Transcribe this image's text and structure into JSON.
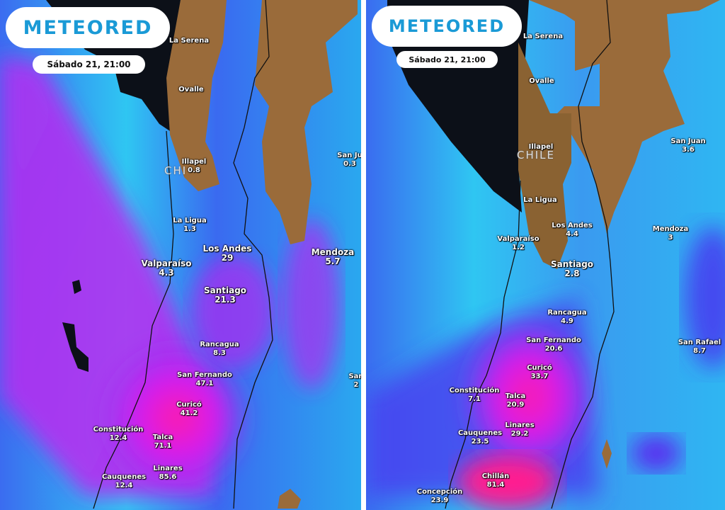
{
  "panels": [
    {
      "brand": "METEORED",
      "datetime": "Sábado 21, 21:00",
      "country_label": "CHI",
      "places": [
        {
          "name": "La Serena",
          "value": ""
        },
        {
          "name": "Ovalle",
          "value": ""
        },
        {
          "name": "Illapel",
          "value": "0.8"
        },
        {
          "name": "San Ju",
          "value": "0.3"
        },
        {
          "name": "La Ligua",
          "value": "1.3"
        },
        {
          "name": "Los Andes",
          "value": "29"
        },
        {
          "name": "Mendoza",
          "value": "5.7"
        },
        {
          "name": "Valparaíso",
          "value": "4.3"
        },
        {
          "name": "Santiago",
          "value": "21.3"
        },
        {
          "name": "Rancagua",
          "value": "8.3"
        },
        {
          "name": "San Fernando",
          "value": "47.1"
        },
        {
          "name": "San",
          "value": "2"
        },
        {
          "name": "Curicó",
          "value": "41.2"
        },
        {
          "name": "Constitución",
          "value": "12.4"
        },
        {
          "name": "Talca",
          "value": "71.1"
        },
        {
          "name": "Linares",
          "value": "85.6"
        },
        {
          "name": "Cauquenes",
          "value": "12.4"
        }
      ]
    },
    {
      "brand": "METEORED",
      "datetime": "Sábado 21, 21:00",
      "country_label": "CHILE",
      "places": [
        {
          "name": "La Serena",
          "value": ""
        },
        {
          "name": "Ovalle",
          "value": ""
        },
        {
          "name": "Illapel",
          "value": ""
        },
        {
          "name": "San Juan",
          "value": "3.6"
        },
        {
          "name": "La Ligua",
          "value": ""
        },
        {
          "name": "Los Andes",
          "value": "4.4"
        },
        {
          "name": "Mendoza",
          "value": "3"
        },
        {
          "name": "Valparaíso",
          "value": "1.2"
        },
        {
          "name": "Santiago",
          "value": "2.8"
        },
        {
          "name": "Rancagua",
          "value": "4.9"
        },
        {
          "name": "San Fernando",
          "value": "20.6"
        },
        {
          "name": "San Rafael",
          "value": "8.7"
        },
        {
          "name": "Curicó",
          "value": "33.7"
        },
        {
          "name": "Constitución",
          "value": "7.1"
        },
        {
          "name": "Talca",
          "value": "20.9"
        },
        {
          "name": "Linares",
          "value": "29.2"
        },
        {
          "name": "Cauquenes",
          "value": "23.5"
        },
        {
          "name": "Chillán",
          "value": "81.4"
        },
        {
          "name": "Concepción",
          "value": "23.9"
        }
      ]
    }
  ],
  "colors": {
    "brand": "#1a9ad6",
    "light_rain": "#2fc6f2",
    "moderate_rain": "#3a5cf0",
    "heavy_rain": "#a020f0",
    "very_heavy_rain": "#ff1aa8",
    "land": "#9a6b3a",
    "ocean_no_rain": "#0c1018"
  }
}
